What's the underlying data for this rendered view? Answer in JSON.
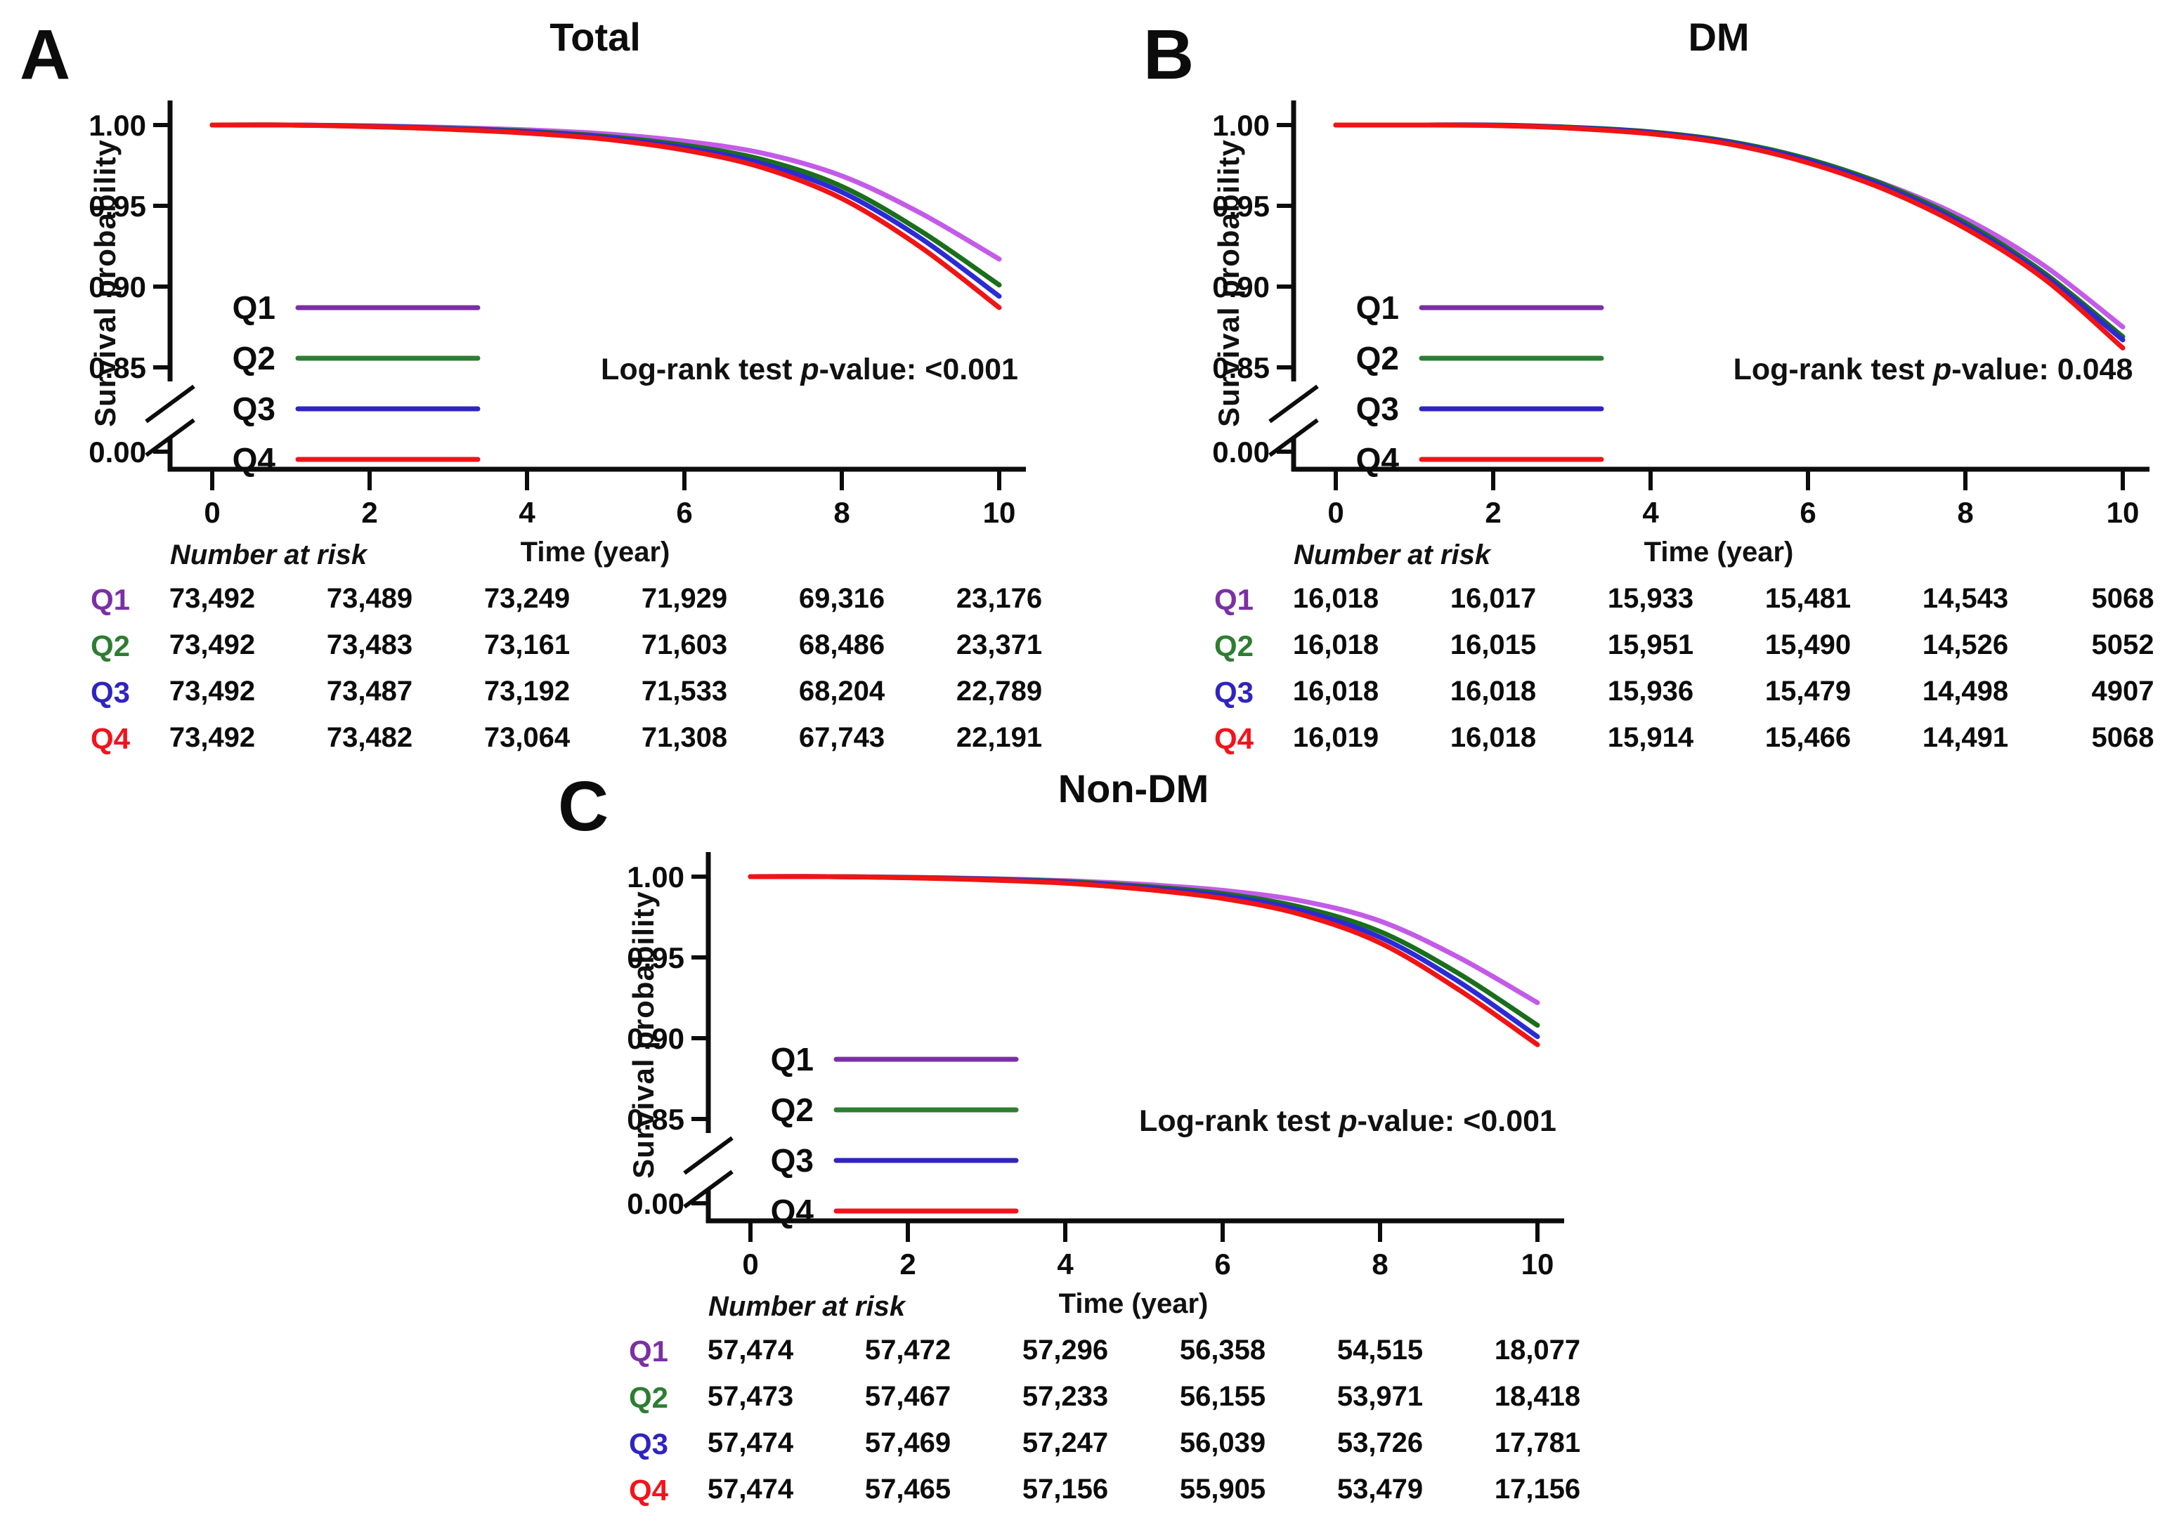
{
  "figure_background": "#ffffff",
  "axis_color": "#0c0c0c",
  "chart_data": [
    {
      "panel": "A",
      "type": "line",
      "title": "Total",
      "ylabel": "Survival probability",
      "xlabel": "Time (year)",
      "p_label_before": "Log-rank test",
      "p_italic": "p",
      "p_label_after": "-value:",
      "p_value": "<0.001",
      "y_tick_labels": [
        "1.00",
        "0.95",
        "0.90",
        "0.85",
        "0.00"
      ],
      "x_tick_labels": [
        "0",
        "2",
        "4",
        "6",
        "8",
        "10"
      ],
      "y_axis_break": true,
      "ylim_top": [
        0.85,
        1.0
      ],
      "legend_position": "left-middle",
      "x": [
        0,
        1,
        2,
        3,
        4,
        5,
        6,
        7,
        8,
        9,
        10
      ],
      "series": [
        {
          "name": "Q1",
          "color": "#c45be8",
          "label_color": "#7b2fa5",
          "y": [
            1.0,
            1.0,
            0.9995,
            0.9985,
            0.997,
            0.9945,
            0.99,
            0.9825,
            0.9685,
            0.9455,
            0.917
          ]
        },
        {
          "name": "Q2",
          "color": "#1b6e1b",
          "label_color": "#2e7d32",
          "y": [
            1.0,
            1.0,
            0.9993,
            0.998,
            0.9962,
            0.993,
            0.9875,
            0.9785,
            0.962,
            0.9345,
            0.901
          ]
        },
        {
          "name": "Q3",
          "color": "#2b2bd6",
          "label_color": "#2f24c0",
          "y": [
            1.0,
            1.0,
            0.9992,
            0.9978,
            0.9958,
            0.9922,
            0.986,
            0.976,
            0.9585,
            0.93,
            0.894
          ]
        },
        {
          "name": "Q4",
          "color": "#f01414",
          "label_color": "#f3131b",
          "y": [
            1.0,
            1.0,
            0.999,
            0.9974,
            0.995,
            0.9912,
            0.9845,
            0.9735,
            0.9545,
            0.9245,
            0.887
          ]
        }
      ],
      "number_at_risk": {
        "header": "Number at risk",
        "times": [
          0,
          2,
          4,
          6,
          8,
          10
        ],
        "rows": [
          {
            "name": "Q1",
            "counts": [
              "73,492",
              "73,489",
              "73,249",
              "71,929",
              "69,316",
              "23,176"
            ]
          },
          {
            "name": "Q2",
            "counts": [
              "73,492",
              "73,483",
              "73,161",
              "71,603",
              "68,486",
              "23,371"
            ]
          },
          {
            "name": "Q3",
            "counts": [
              "73,492",
              "73,487",
              "73,192",
              "71,533",
              "68,204",
              "22,789"
            ]
          },
          {
            "name": "Q4",
            "counts": [
              "73,492",
              "73,482",
              "73,064",
              "71,308",
              "67,743",
              "22,191"
            ]
          }
        ]
      }
    },
    {
      "panel": "B",
      "type": "line",
      "title": "DM",
      "ylabel": "Survival probability",
      "xlabel": "Time (year)",
      "p_label_before": "Log-rank test",
      "p_italic": "p",
      "p_label_after": "-value:",
      "p_value": "0.048",
      "y_tick_labels": [
        "1.00",
        "0.95",
        "0.90",
        "0.85",
        "0.00"
      ],
      "x_tick_labels": [
        "0",
        "2",
        "4",
        "6",
        "8",
        "10"
      ],
      "y_axis_break": true,
      "ylim_top": [
        0.85,
        1.0
      ],
      "legend_position": "left-middle",
      "x": [
        0,
        1,
        2,
        3,
        4,
        5,
        6,
        7,
        8,
        9,
        10
      ],
      "series": [
        {
          "name": "Q1",
          "color": "#c45be8",
          "label_color": "#7b2fa5",
          "y": [
            1.0,
            1.0,
            0.9998,
            0.9982,
            0.995,
            0.9888,
            0.9782,
            0.963,
            0.942,
            0.913,
            0.875
          ]
        },
        {
          "name": "Q2",
          "color": "#1b6e1b",
          "label_color": "#2e7d32",
          "y": [
            1.0,
            1.0,
            1.0,
            0.9986,
            0.9958,
            0.9898,
            0.979,
            0.9625,
            0.9395,
            0.9085,
            0.869
          ]
        },
        {
          "name": "Q3",
          "color": "#2b2bd6",
          "label_color": "#2f24c0",
          "y": [
            1.0,
            1.0,
            0.9999,
            0.9984,
            0.9954,
            0.9892,
            0.978,
            0.9612,
            0.9378,
            0.9068,
            0.867
          ]
        },
        {
          "name": "Q4",
          "color": "#f01414",
          "label_color": "#f3131b",
          "y": [
            1.0,
            1.0,
            0.9997,
            0.998,
            0.9946,
            0.9882,
            0.9766,
            0.9596,
            0.936,
            0.9048,
            0.862
          ]
        }
      ],
      "number_at_risk": {
        "header": "Number at risk",
        "times": [
          0,
          2,
          4,
          6,
          8,
          10
        ],
        "rows": [
          {
            "name": "Q1",
            "counts": [
              "16,018",
              "16,017",
              "15,933",
              "15,481",
              "14,543",
              "5068"
            ]
          },
          {
            "name": "Q2",
            "counts": [
              "16,018",
              "16,015",
              "15,951",
              "15,490",
              "14,526",
              "5052"
            ]
          },
          {
            "name": "Q3",
            "counts": [
              "16,018",
              "16,018",
              "15,936",
              "15,479",
              "14,498",
              "4907"
            ]
          },
          {
            "name": "Q4",
            "counts": [
              "16,019",
              "16,018",
              "15,914",
              "15,466",
              "14,491",
              "5068"
            ]
          }
        ]
      }
    },
    {
      "panel": "C",
      "type": "line",
      "title": "Non-DM",
      "ylabel": "Survival probability",
      "xlabel": "Time (year)",
      "p_label_before": "Log-rank test",
      "p_italic": "p",
      "p_label_after": "-value:",
      "p_value": "<0.001",
      "y_tick_labels": [
        "1.00",
        "0.95",
        "0.90",
        "0.85",
        "0.00"
      ],
      "x_tick_labels": [
        "0",
        "2",
        "4",
        "6",
        "8",
        "10"
      ],
      "y_axis_break": true,
      "ylim_top": [
        0.85,
        1.0
      ],
      "legend_position": "left-middle",
      "x": [
        0,
        1,
        2,
        3,
        4,
        5,
        6,
        7,
        8,
        9,
        10
      ],
      "series": [
        {
          "name": "Q1",
          "color": "#c45be8",
          "label_color": "#7b2fa5",
          "y": [
            1.0,
            1.0,
            0.9996,
            0.9988,
            0.9975,
            0.9952,
            0.9915,
            0.985,
            0.9725,
            0.95,
            0.922
          ]
        },
        {
          "name": "Q2",
          "color": "#1b6e1b",
          "label_color": "#2e7d32",
          "y": [
            1.0,
            1.0,
            0.9995,
            0.9985,
            0.997,
            0.994,
            0.9895,
            0.981,
            0.966,
            0.94,
            0.908
          ]
        },
        {
          "name": "Q3",
          "color": "#2b2bd6",
          "label_color": "#2f24c0",
          "y": [
            1.0,
            1.0,
            0.9994,
            0.9983,
            0.9966,
            0.9932,
            0.9882,
            0.979,
            0.9625,
            0.935,
            0.901
          ]
        },
        {
          "name": "Q4",
          "color": "#f01414",
          "label_color": "#f3131b",
          "y": [
            1.0,
            1.0,
            0.9993,
            0.998,
            0.996,
            0.9922,
            0.9865,
            0.9765,
            0.959,
            0.93,
            0.896
          ]
        }
      ],
      "number_at_risk": {
        "header": "Number at risk",
        "times": [
          0,
          2,
          4,
          6,
          8,
          10
        ],
        "rows": [
          {
            "name": "Q1",
            "counts": [
              "57,474",
              "57,472",
              "57,296",
              "56,358",
              "54,515",
              "18,077"
            ]
          },
          {
            "name": "Q2",
            "counts": [
              "57,473",
              "57,467",
              "57,233",
              "56,155",
              "53,971",
              "18,418"
            ]
          },
          {
            "name": "Q3",
            "counts": [
              "57,474",
              "57,469",
              "57,247",
              "56,039",
              "53,726",
              "17,781"
            ]
          },
          {
            "name": "Q4",
            "counts": [
              "57,474",
              "57,465",
              "57,156",
              "55,905",
              "53,479",
              "17,156"
            ]
          }
        ]
      }
    }
  ]
}
